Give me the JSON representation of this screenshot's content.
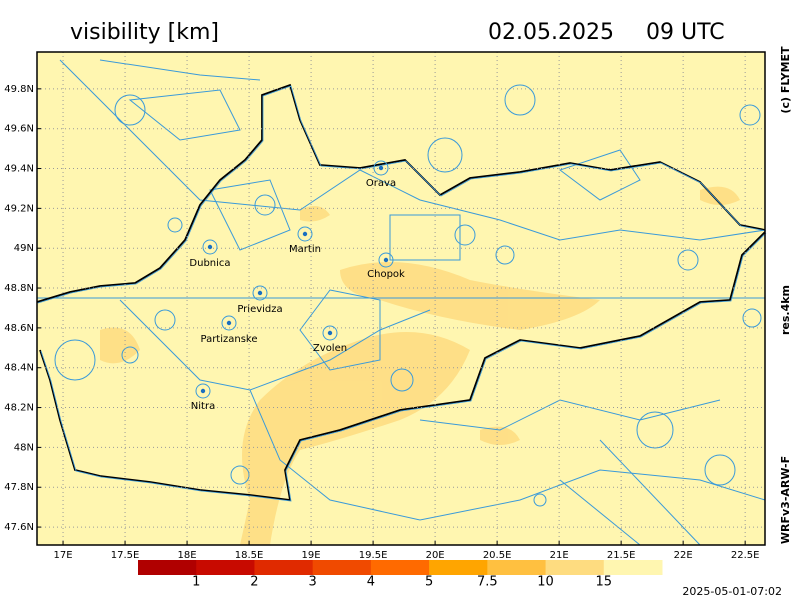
{
  "map": {
    "title": "visibility [km]",
    "date": "02.05.2025",
    "time": "09 UTC",
    "copyright": "(c) FLYMET",
    "resolution": "res.4km",
    "model": "WRFv3-ARW-F",
    "timestamp": "2025-05-01-07:02",
    "xlim": [
      16.79,
      22.66
    ],
    "ylim": [
      47.51,
      49.985
    ],
    "xticks": [
      {
        "value": 17,
        "label": "17E"
      },
      {
        "value": 17.5,
        "label": "17.5E"
      },
      {
        "value": 18,
        "label": "18E"
      },
      {
        "value": 18.5,
        "label": "18.5E"
      },
      {
        "value": 19,
        "label": "19E"
      },
      {
        "value": 19.5,
        "label": "19.5E"
      },
      {
        "value": 20,
        "label": "20E"
      },
      {
        "value": 20.5,
        "label": "20.5E"
      },
      {
        "value": 21,
        "label": "21E"
      },
      {
        "value": 21.5,
        "label": "21.5E"
      },
      {
        "value": 22,
        "label": "22E"
      },
      {
        "value": 22.5,
        "label": "22.5E"
      }
    ],
    "yticks": [
      {
        "value": 47.6,
        "label": "47.6N"
      },
      {
        "value": 47.8,
        "label": "47.8N"
      },
      {
        "value": 48,
        "label": "48N"
      },
      {
        "value": 48.2,
        "label": "48.2N"
      },
      {
        "value": 48.4,
        "label": "48.4N"
      },
      {
        "value": 48.6,
        "label": "48.6N"
      },
      {
        "value": 48.8,
        "label": "48.8N"
      },
      {
        "value": 49,
        "label": "49N"
      },
      {
        "value": 49.2,
        "label": "49.2N"
      },
      {
        "value": 49.4,
        "label": "49.4N"
      },
      {
        "value": 49.6,
        "label": "49.6N"
      },
      {
        "value": 49.8,
        "label": "49.8N"
      }
    ],
    "grid": true,
    "cities": [
      "Orava",
      "Martin",
      "Dubnica",
      "Chopok",
      "Prievidza",
      "Partizanske",
      "Zvolen",
      "Nitra"
    ],
    "colorbar": {
      "ticks": [
        1,
        2,
        3,
        4,
        5,
        7.5,
        10,
        15
      ],
      "colors": [
        "#b00000",
        "#c80a00",
        "#e02a00",
        "#f04a00",
        "#ff6a00",
        "#ffa500",
        "#ffc040",
        "#fedc80",
        "#fff6b0"
      ]
    }
  }
}
